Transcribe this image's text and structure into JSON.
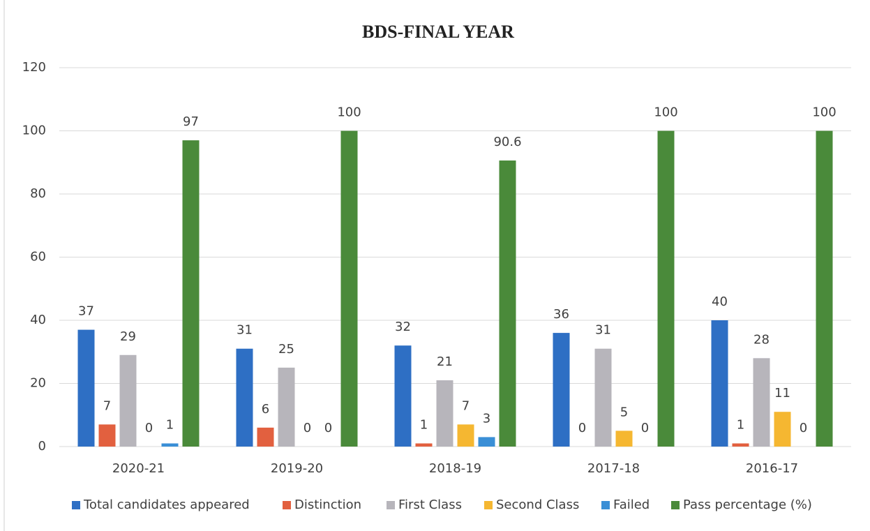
{
  "chart_data": {
    "type": "bar",
    "title": "BDS-FINAL YEAR",
    "categories": [
      "2020-21",
      "2019-20",
      "2018-19",
      "2017-18",
      "2016-17"
    ],
    "series": [
      {
        "name": "Total candidates appeared",
        "color": "#2e6fc4",
        "values": [
          37,
          31,
          32,
          36,
          40
        ]
      },
      {
        "name": "Distinction",
        "color": "#e2603f",
        "values": [
          7,
          6,
          1,
          0,
          1
        ]
      },
      {
        "name": "First Class",
        "color": "#b7b5bb",
        "values": [
          29,
          25,
          21,
          31,
          28
        ]
      },
      {
        "name": "Second Class",
        "color": "#f5b731",
        "values": [
          0,
          0,
          7,
          5,
          11
        ]
      },
      {
        "name": "Failed",
        "color": "#3a8fd6",
        "values": [
          1,
          0,
          3,
          0,
          0
        ]
      },
      {
        "name": "Pass percentage (%)",
        "color": "#4a8a3a",
        "values": [
          97,
          100,
          90.6,
          100,
          100
        ]
      }
    ],
    "ylim": [
      0,
      120
    ],
    "yticks": [
      0,
      20,
      40,
      60,
      80,
      100,
      120
    ],
    "grid": true,
    "legend": "bottom"
  }
}
